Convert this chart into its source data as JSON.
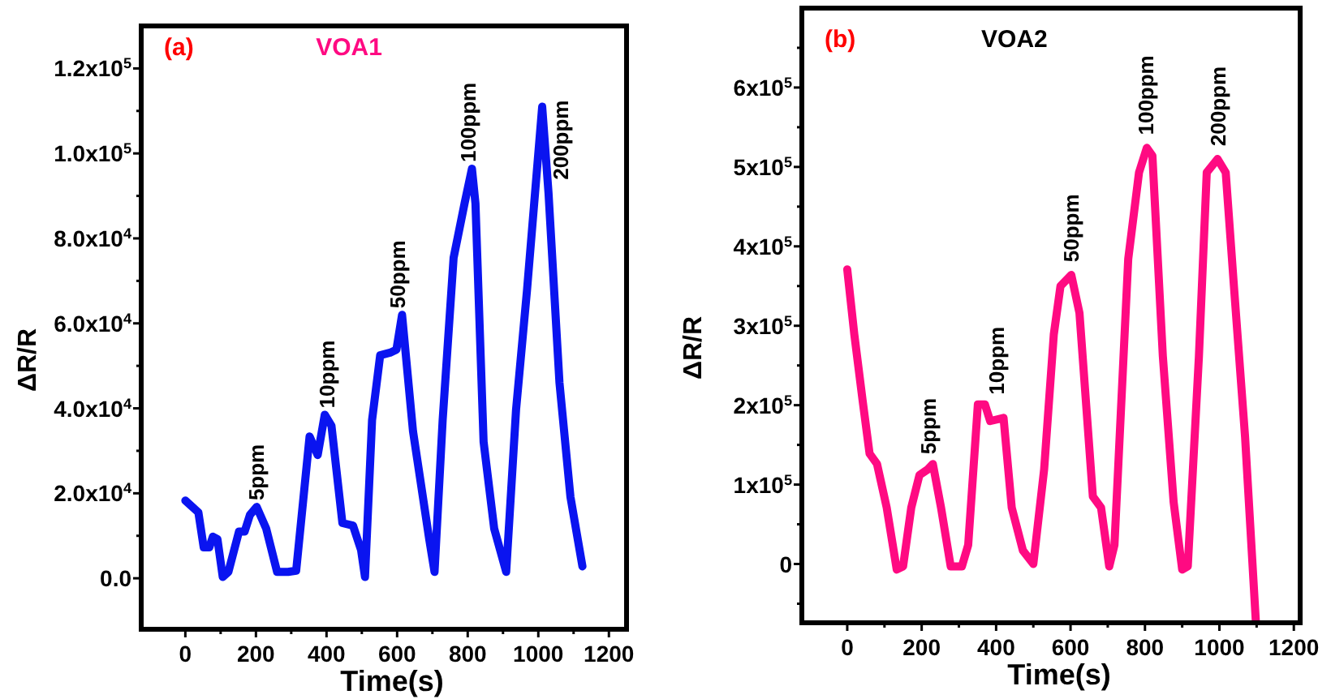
{
  "chart_data": [
    {
      "type": "line",
      "title": "VOA1",
      "xlabel": "Time(s)",
      "ylabel": "ΔR/R",
      "annotations": [
        "(a)",
        {
          "text": "5ppm",
          "x": 200,
          "y": 16800
        },
        {
          "text": "10ppm",
          "x": 400,
          "y": 38500
        },
        {
          "text": "50ppm",
          "x": 600,
          "y": 62000
        },
        {
          "text": "100ppm",
          "x": 800,
          "y": 96400
        },
        {
          "text": "200ppm",
          "x": 1011,
          "y": 111000
        }
      ],
      "xlim": [
        -125,
        1250
      ],
      "xticks": [
        0,
        {
          "value": 100,
          "label": null
        },
        200,
        {
          "value": 300,
          "label": null
        },
        400,
        {
          "value": 500,
          "label": null
        },
        600,
        {
          "value": 700,
          "label": null
        },
        800,
        {
          "value": 900,
          "label": null
        },
        1000,
        {
          "value": 1100,
          "label": null
        },
        1200
      ],
      "ylim": [
        -12000,
        130000
      ],
      "yticks": [
        {
          "value": 0,
          "label": "0.0"
        },
        {
          "value": 10000,
          "label": null
        },
        {
          "value": 20000,
          "label": "2.0x10$^{4}$"
        },
        {
          "value": 30000,
          "label": null
        },
        {
          "value": 40000,
          "label": "4.0x10$^{4}$"
        },
        {
          "value": 50000,
          "label": null
        },
        {
          "value": 60000,
          "label": "6.0x10$^{4}$"
        },
        {
          "value": 70000,
          "label": null
        },
        {
          "value": 80000,
          "label": "8.0x10$^{4}$"
        },
        {
          "value": 90000,
          "label": null
        },
        {
          "value": 100000,
          "label": "1.0x10$^{5}$"
        },
        {
          "value": 110000,
          "label": null
        },
        {
          "value": 120000,
          "label": "1.2x10$^{5}$"
        }
      ],
      "grid": false,
      "marker": "none",
      "line_style": "solid",
      "series": [
        {
          "color": "#0a14f0",
          "x": [
            0,
            37,
            52,
            68,
            78,
            91,
            106,
            122,
            152,
            168,
            183,
            202,
            229,
            260,
            291,
            314,
            352,
            375,
            395,
            414,
            445,
            475,
            498,
            509,
            529,
            552,
            580,
            598,
            614,
            645,
            691,
            706,
            729,
            760,
            791,
            812,
            822,
            845,
            875,
            909,
            937,
            968,
            1011,
            1029,
            1060,
            1091,
            1125
          ],
          "values": [
            18300,
            15500,
            7300,
            7300,
            9800,
            9200,
            300,
            1500,
            11000,
            11000,
            14900,
            16800,
            11700,
            1500,
            1500,
            1800,
            33400,
            29000,
            38500,
            35900,
            13000,
            12400,
            6600,
            300,
            37200,
            52500,
            53100,
            53800,
            62000,
            34600,
            9200,
            1500,
            37200,
            75400,
            88200,
            96400,
            88200,
            32100,
            11700,
            1500,
            39700,
            67800,
            111000,
            90600,
            46000,
            19200,
            2800
          ]
        }
      ]
    },
    {
      "type": "line",
      "title": "VOA2",
      "xlabel": "Time(s)",
      "ylabel": "ΔR/R",
      "annotations": [
        "(b)",
        {
          "text": "5ppm",
          "x": 216,
          "y": 130000
        },
        {
          "text": "10ppm",
          "x": 400,
          "y": 205000
        },
        {
          "text": "50ppm",
          "x": 600,
          "y": 372000
        },
        {
          "text": "100ppm",
          "x": 800,
          "y": 532000
        },
        {
          "text": "200ppm",
          "x": 995,
          "y": 518000
        }
      ],
      "xlim": [
        -122,
        1217
      ],
      "xticks": [
        0,
        {
          "value": 100,
          "label": null
        },
        200,
        {
          "value": 300,
          "label": null
        },
        400,
        {
          "value": 500,
          "label": null
        },
        600,
        {
          "value": 700,
          "label": null
        },
        800,
        {
          "value": 900,
          "label": null
        },
        1000,
        {
          "value": 1100,
          "label": null
        },
        1200
      ],
      "ylim": [
        -74000,
        700000
      ],
      "yticks": [
        {
          "value": -50000,
          "label": null
        },
        0,
        {
          "value": 50000,
          "label": null
        },
        {
          "value": 100000,
          "label": "1x10$^{5}$"
        },
        {
          "value": 150000,
          "label": null
        },
        {
          "value": 200000,
          "label": "2x10$^{5}$"
        },
        {
          "value": 250000,
          "label": null
        },
        {
          "value": 300000,
          "label": "3x10$^{5}$"
        },
        {
          "value": 350000,
          "label": null
        },
        {
          "value": 400000,
          "label": "4x10$^{5}$"
        },
        {
          "value": 450000,
          "label": null
        },
        {
          "value": 500000,
          "label": "5x10$^{5}$"
        },
        {
          "value": 550000,
          "label": null
        },
        {
          "value": 600000,
          "label": "6x10$^{5}$"
        },
        {
          "value": 650000,
          "label": null
        }
      ],
      "grid": false,
      "marker": "none",
      "line_style": "solid",
      "series": [
        {
          "color": "#ff0a82",
          "x": [
            0,
            19,
            41,
            60,
            80,
            106,
            133,
            150,
            172,
            194,
            216,
            230,
            252,
            278,
            308,
            325,
            351,
            370,
            384,
            420,
            442,
            472,
            500,
            529,
            555,
            573,
            602,
            624,
            660,
            682,
            704,
            718,
            755,
            784,
            805,
            820,
            848,
            877,
            900,
            915,
            945,
            966,
            995,
            1017,
            1039,
            1069,
            1098
          ],
          "values": [
            371000,
            289000,
            207000,
            139000,
            126000,
            71000,
            -7000,
            -3000,
            71000,
            112000,
            119000,
            126000,
            71000,
            -3000,
            -3000,
            24000,
            201000,
            201000,
            180000,
            184000,
            71000,
            17000,
            0,
            119000,
            289000,
            350000,
            364000,
            316000,
            85000,
            71000,
            -3000,
            24000,
            384000,
            493000,
            524000,
            514000,
            262000,
            78000,
            -7000,
            -3000,
            262000,
            493000,
            510000,
            493000,
            350000,
            160000,
            -73000
          ]
        }
      ]
    }
  ]
}
